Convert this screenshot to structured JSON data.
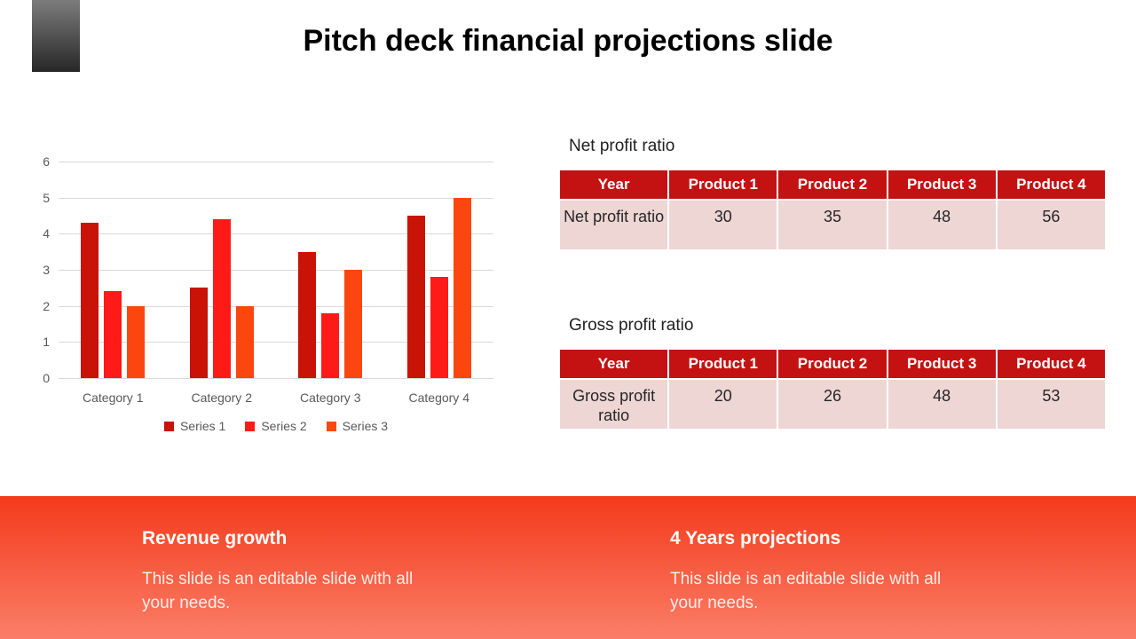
{
  "title": "Pitch deck financial projections slide",
  "chart_data": {
    "type": "bar",
    "categories": [
      "Category 1",
      "Category 2",
      "Category 3",
      "Category 4"
    ],
    "series": [
      {
        "name": "Series 1",
        "color": "#c81306",
        "values": [
          4.3,
          2.5,
          3.5,
          4.5
        ]
      },
      {
        "name": "Series 2",
        "color": "#fe1b17",
        "values": [
          2.4,
          4.4,
          1.8,
          2.8
        ]
      },
      {
        "name": "Series 3",
        "color": "#fb470f",
        "values": [
          2.0,
          2.0,
          3.0,
          5.0
        ]
      }
    ],
    "ylim": [
      0,
      6
    ],
    "yticks": [
      0,
      1,
      2,
      3,
      4,
      5,
      6
    ],
    "grid": true,
    "legend_position": "bottom",
    "title": "",
    "xlabel": "",
    "ylabel": ""
  },
  "tables": [
    {
      "title": "Net profit ratio",
      "headers": [
        "Year",
        "Product 1",
        "Product 2",
        "Product 3",
        "Product 4"
      ],
      "rows": [
        [
          "Net profit ratio",
          "30",
          "35",
          "48",
          "56"
        ]
      ]
    },
    {
      "title": "Gross profit ratio",
      "headers": [
        "Year",
        "Product 1",
        "Product 2",
        "Product 3",
        "Product 4"
      ],
      "rows": [
        [
          "Gross profit ratio",
          "20",
          "26",
          "48",
          "53"
        ]
      ]
    }
  ],
  "footer": {
    "items": [
      {
        "heading": "Revenue growth",
        "body": "This slide is an editable slide with all your needs."
      },
      {
        "heading": "4 Years projections",
        "body": "This slide is an editable slide with all your needs."
      }
    ]
  },
  "colors": {
    "table_header": "#c41212",
    "table_row": "#edd6d4",
    "band_gradient_top": "#f43a1b",
    "band_gradient_bottom": "#fa7e68",
    "corner_gradient_top": "#7c7c7c",
    "corner_gradient_bottom": "#272727",
    "axis_text": "#595959",
    "gridline": "#d9d9d9",
    "title_text": "#000000"
  }
}
